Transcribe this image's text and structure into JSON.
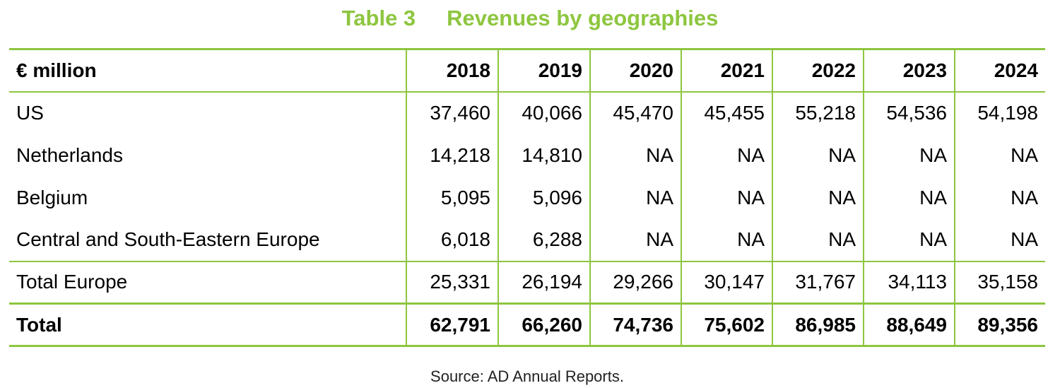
{
  "title": {
    "number": "Table 3",
    "text": "Revenues by geographies"
  },
  "colors": {
    "accent": "#8dc63f",
    "text": "#000000"
  },
  "table": {
    "columns": [
      "€ million",
      "2018",
      "2019",
      "2020",
      "2021",
      "2022",
      "2023",
      "2024"
    ],
    "rows": [
      {
        "label": "US",
        "values": [
          "37,460",
          "40,066",
          "45,470",
          "45,455",
          "55,218",
          "54,536",
          "54,198"
        ]
      },
      {
        "label": "Netherlands",
        "values": [
          "14,218",
          "14,810",
          "NA",
          "NA",
          "NA",
          "NA",
          "NA"
        ]
      },
      {
        "label": "Belgium",
        "values": [
          "5,095",
          "5,096",
          "NA",
          "NA",
          "NA",
          "NA",
          "NA"
        ]
      },
      {
        "label": "Central and South-Eastern Europe",
        "values": [
          "6,018",
          "6,288",
          "NA",
          "NA",
          "NA",
          "NA",
          "NA"
        ]
      },
      {
        "label": "Total Europe",
        "values": [
          "25,331",
          "26,194",
          "29,266",
          "30,147",
          "31,767",
          "34,113",
          "35,158"
        ]
      },
      {
        "label": "Total",
        "values": [
          "62,791",
          "66,260",
          "74,736",
          "75,602",
          "86,985",
          "88,649",
          "89,356"
        ]
      }
    ]
  },
  "source": "Source: AD Annual Reports."
}
